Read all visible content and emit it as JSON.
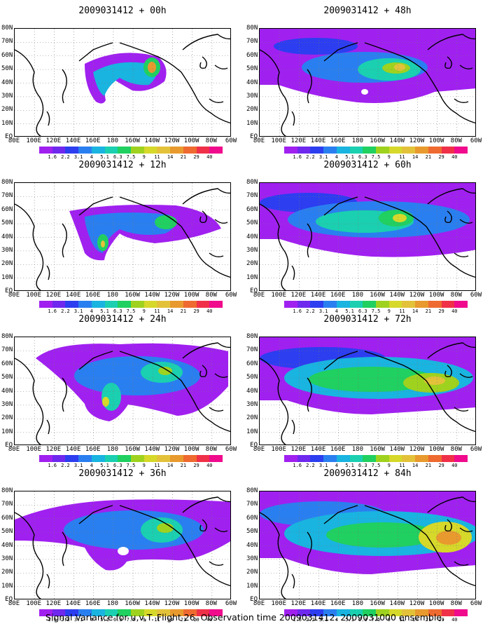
{
  "figure": {
    "caption": "Signal Variance for u,v,T. Flight 26. Observation time 2009031412. 2009031000 ensemble.",
    "lat_labels": [
      "80N",
      "70N",
      "60N",
      "50N",
      "40N",
      "30N",
      "20N",
      "10N",
      "EQ"
    ],
    "lon_labels": [
      "80E",
      "100E",
      "120E",
      "140E",
      "160E",
      "180",
      "160W",
      "140W",
      "120W",
      "100W",
      "80W",
      "60W"
    ],
    "colorbar": {
      "labels": [
        "1.6",
        "2.2",
        "3.1",
        "4",
        "5.1",
        "6.3",
        "7.5",
        "9",
        "11",
        "14",
        "21",
        "29",
        "40"
      ],
      "colors": [
        "#a020f0",
        "#6e28ee",
        "#2c3ef0",
        "#2a7ff0",
        "#19b4e0",
        "#1ad0b0",
        "#20d060",
        "#9fd21e",
        "#d6d82a",
        "#e3c23a",
        "#e89a2e",
        "#ef6a30",
        "#f03048",
        "#f00a8c"
      ]
    },
    "land_color": "#000000",
    "panels": [
      {
        "title": "2009031412 + 00h",
        "lead_hours": 0
      },
      {
        "title": "2009031412 + 48h",
        "lead_hours": 48
      },
      {
        "title": "2009031412 + 12h",
        "lead_hours": 12
      },
      {
        "title": "2009031412 + 60h",
        "lead_hours": 60
      },
      {
        "title": "2009031412 + 24h",
        "lead_hours": 24
      },
      {
        "title": "2009031412 + 72h",
        "lead_hours": 72
      },
      {
        "title": "2009031412 + 36h",
        "lead_hours": 36
      },
      {
        "title": "2009031412 + 84h",
        "lead_hours": 84
      }
    ]
  }
}
